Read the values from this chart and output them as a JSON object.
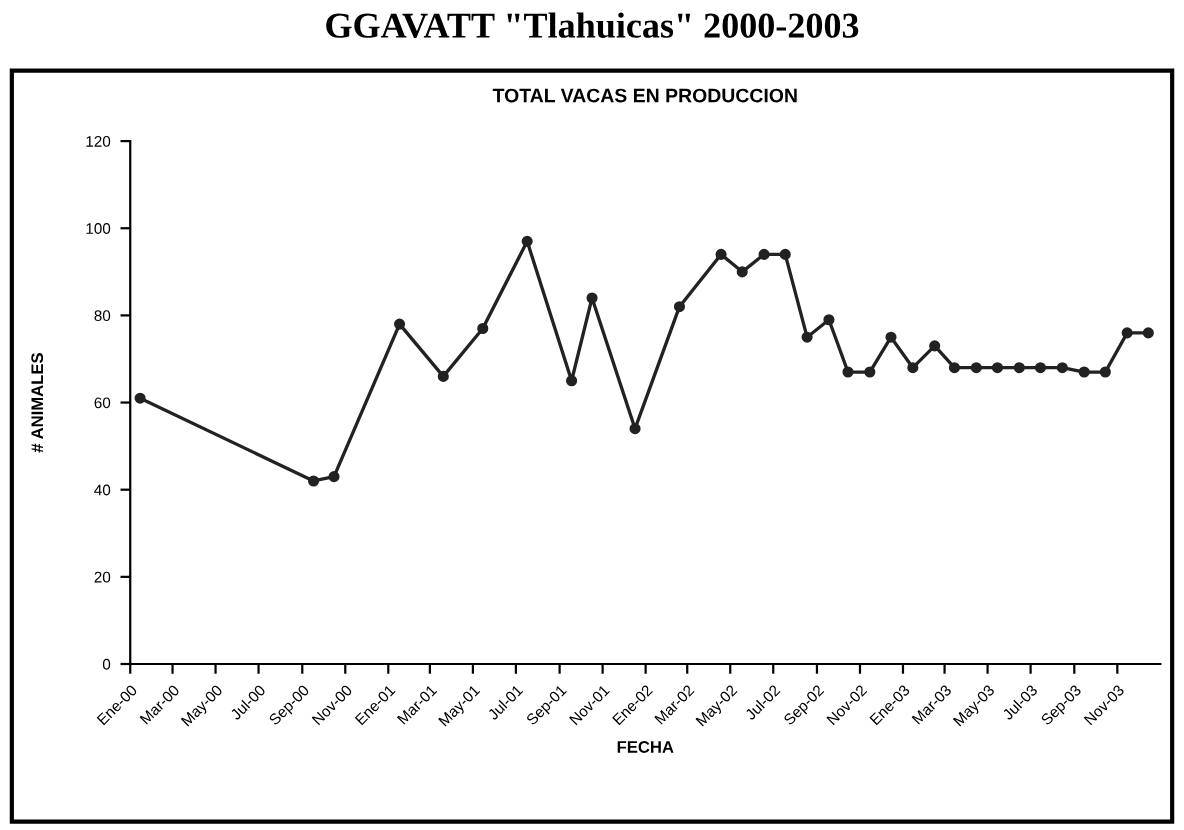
{
  "chart_data": {
    "type": "line",
    "title": "GGAVATT \"Tlahuicas\" 2000-2003",
    "subtitle": "TOTAL VACAS EN PRODUCCION",
    "xlabel": "FECHA",
    "ylabel": "# ANIMALES",
    "x": [
      "2000-01-15",
      "2000-09-17",
      "2000-10-16",
      "2001-01-17",
      "2001-03-20",
      "2001-05-15",
      "2001-07-17",
      "2001-09-18",
      "2001-10-17",
      "2001-12-17",
      "2002-02-18",
      "2002-04-18",
      "2002-05-18",
      "2002-06-18",
      "2002-07-18",
      "2002-08-18",
      "2002-09-18",
      "2002-10-15",
      "2002-11-15",
      "2002-12-15",
      "2003-01-15",
      "2003-02-15",
      "2003-03-15",
      "2003-04-15",
      "2003-05-15",
      "2003-06-15",
      "2003-07-15",
      "2003-08-15",
      "2003-09-15",
      "2003-10-15",
      "2003-11-15",
      "2003-12-15"
    ],
    "series": [
      {
        "color": "#222222",
        "values": [
          61,
          42,
          43,
          78,
          66,
          77,
          97,
          65,
          84,
          54,
          82,
          94,
          90,
          94,
          94,
          75,
          79,
          67,
          67,
          75,
          68,
          73,
          68,
          68,
          68,
          68,
          68,
          68,
          67,
          67,
          76,
          76
        ]
      }
    ],
    "xlim": [
      "2000-01-01",
      "2004-01-01"
    ],
    "xticks": [
      {
        "value": "2000-01-01",
        "label": "Ene-00"
      },
      {
        "value": "2000-03-01",
        "label": "Mar-00"
      },
      {
        "value": "2000-05-01",
        "label": "May-00"
      },
      {
        "value": "2000-07-01",
        "label": "Jul-00"
      },
      {
        "value": "2000-09-01",
        "label": "Sep-00"
      },
      {
        "value": "2000-11-01",
        "label": "Nov-00"
      },
      {
        "value": "2001-01-01",
        "label": "Ene-01"
      },
      {
        "value": "2001-03-01",
        "label": "Mar-01"
      },
      {
        "value": "2001-05-01",
        "label": "May-01"
      },
      {
        "value": "2001-07-01",
        "label": "Jul-01"
      },
      {
        "value": "2001-09-01",
        "label": "Sep-01"
      },
      {
        "value": "2001-11-01",
        "label": "Nov-01"
      },
      {
        "value": "2002-01-01",
        "label": "Ene-02"
      },
      {
        "value": "2002-03-01",
        "label": "Mar-02"
      },
      {
        "value": "2002-05-01",
        "label": "May-02"
      },
      {
        "value": "2002-07-01",
        "label": "Jul-02"
      },
      {
        "value": "2002-09-01",
        "label": "Sep-02"
      },
      {
        "value": "2002-11-01",
        "label": "Nov-02"
      },
      {
        "value": "2003-01-01",
        "label": "Ene-03"
      },
      {
        "value": "2003-03-01",
        "label": "Mar-03"
      },
      {
        "value": "2003-05-01",
        "label": "May-03"
      },
      {
        "value": "2003-07-01",
        "label": "Jul-03"
      },
      {
        "value": "2003-09-01",
        "label": "Sep-03"
      },
      {
        "value": "2003-11-01",
        "label": "Nov-03"
      }
    ],
    "ylim": [
      0,
      120
    ],
    "yticks": [
      0,
      20,
      40,
      60,
      80,
      100,
      120
    ],
    "grid": false,
    "legend": false,
    "marker": "circle",
    "line_style": "solid"
  }
}
